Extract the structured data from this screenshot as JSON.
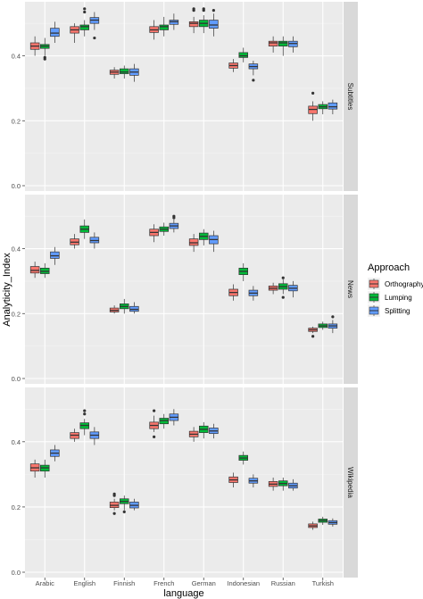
{
  "chart_data": {
    "type": "box",
    "xlabel": "language",
    "ylabel": "Analyticity_Index",
    "categories": [
      "Arabic",
      "English",
      "Finnish",
      "French",
      "German",
      "Indonesian",
      "Russian",
      "Turkish"
    ],
    "ylim": [
      0.0,
      0.55
    ],
    "yticks": [
      "0.0",
      "0.2",
      "0.4"
    ],
    "legend": {
      "title": "Approach",
      "position": "right",
      "entries": [
        {
          "name": "Orthography",
          "color": "#F8766D"
        },
        {
          "name": "Lumping",
          "color": "#00BA38"
        },
        {
          "name": "Splitting",
          "color": "#619CFF"
        }
      ]
    },
    "panels": [
      {
        "label": "Subtitles",
        "series": [
          {
            "name": "Orthography",
            "boxes": [
              {
                "min": 0.4,
                "q1": 0.42,
                "median": 0.43,
                "q3": 0.44,
                "max": 0.46,
                "outliers": []
              },
              {
                "min": 0.44,
                "q1": 0.47,
                "median": 0.48,
                "q3": 0.49,
                "max": 0.5,
                "outliers": []
              },
              {
                "min": 0.33,
                "q1": 0.343,
                "median": 0.35,
                "q3": 0.356,
                "max": 0.365,
                "outliers": []
              },
              {
                "min": 0.45,
                "q1": 0.472,
                "median": 0.48,
                "q3": 0.49,
                "max": 0.51,
                "outliers": []
              },
              {
                "min": 0.47,
                "q1": 0.49,
                "median": 0.5,
                "q3": 0.505,
                "max": 0.52,
                "outliers": [
                  0.54,
                  0.545
                ]
              },
              {
                "min": 0.35,
                "q1": 0.362,
                "median": 0.37,
                "q3": 0.378,
                "max": 0.39,
                "outliers": []
              },
              {
                "min": 0.41,
                "q1": 0.43,
                "median": 0.44,
                "q3": 0.445,
                "max": 0.46,
                "outliers": []
              },
              {
                "min": 0.2,
                "q1": 0.222,
                "median": 0.235,
                "q3": 0.245,
                "max": 0.26,
                "outliers": [
                  0.285
                ]
              }
            ]
          },
          {
            "name": "Lumping",
            "boxes": [
              {
                "min": 0.4,
                "q1": 0.423,
                "median": 0.43,
                "q3": 0.435,
                "max": 0.455,
                "outliers": [
                  0.39,
                  0.395
                ]
              },
              {
                "min": 0.46,
                "q1": 0.48,
                "median": 0.49,
                "q3": 0.495,
                "max": 0.51,
                "outliers": [
                  0.535,
                  0.545
                ]
              },
              {
                "min": 0.33,
                "q1": 0.345,
                "median": 0.35,
                "q3": 0.36,
                "max": 0.37,
                "outliers": []
              },
              {
                "min": 0.46,
                "q1": 0.48,
                "median": 0.49,
                "q3": 0.495,
                "max": 0.52,
                "outliers": []
              },
              {
                "min": 0.47,
                "q1": 0.49,
                "median": 0.5,
                "q3": 0.51,
                "max": 0.525,
                "outliers": [
                  0.54,
                  0.545
                ]
              },
              {
                "min": 0.38,
                "q1": 0.395,
                "median": 0.4,
                "q3": 0.41,
                "max": 0.425,
                "outliers": []
              },
              {
                "min": 0.4,
                "q1": 0.43,
                "median": 0.44,
                "q3": 0.445,
                "max": 0.46,
                "outliers": []
              },
              {
                "min": 0.22,
                "q1": 0.237,
                "median": 0.243,
                "q3": 0.25,
                "max": 0.26,
                "outliers": []
              }
            ]
          },
          {
            "name": "Splitting",
            "boxes": [
              {
                "min": 0.44,
                "q1": 0.46,
                "median": 0.47,
                "q3": 0.485,
                "max": 0.505,
                "outliers": []
              },
              {
                "min": 0.48,
                "q1": 0.5,
                "median": 0.51,
                "q3": 0.518,
                "max": 0.535,
                "outliers": [
                  0.455
                ]
              },
              {
                "min": 0.32,
                "q1": 0.34,
                "median": 0.35,
                "q3": 0.36,
                "max": 0.375,
                "outliers": []
              },
              {
                "min": 0.48,
                "q1": 0.497,
                "median": 0.505,
                "q3": 0.51,
                "max": 0.53,
                "outliers": []
              },
              {
                "min": 0.46,
                "q1": 0.485,
                "median": 0.495,
                "q3": 0.51,
                "max": 0.53,
                "outliers": [
                  0.54
                ]
              },
              {
                "min": 0.34,
                "q1": 0.36,
                "median": 0.367,
                "q3": 0.375,
                "max": 0.385,
                "outliers": [
                  0.325
                ]
              },
              {
                "min": 0.41,
                "q1": 0.428,
                "median": 0.438,
                "q3": 0.445,
                "max": 0.46,
                "outliers": []
              },
              {
                "min": 0.22,
                "q1": 0.236,
                "median": 0.243,
                "q3": 0.255,
                "max": 0.265,
                "outliers": []
              }
            ]
          }
        ]
      },
      {
        "label": "News",
        "series": [
          {
            "name": "Orthography",
            "boxes": [
              {
                "min": 0.31,
                "q1": 0.325,
                "median": 0.333,
                "q3": 0.345,
                "max": 0.36,
                "outliers": []
              },
              {
                "min": 0.4,
                "q1": 0.412,
                "median": 0.42,
                "q3": 0.43,
                "max": 0.445,
                "outliers": []
              },
              {
                "min": 0.2,
                "q1": 0.205,
                "median": 0.21,
                "q3": 0.217,
                "max": 0.225,
                "outliers": []
              },
              {
                "min": 0.42,
                "q1": 0.44,
                "median": 0.45,
                "q3": 0.46,
                "max": 0.475,
                "outliers": []
              },
              {
                "min": 0.39,
                "q1": 0.41,
                "median": 0.418,
                "q3": 0.43,
                "max": 0.445,
                "outliers": []
              },
              {
                "min": 0.24,
                "q1": 0.255,
                "median": 0.265,
                "q3": 0.275,
                "max": 0.29,
                "outliers": []
              },
              {
                "min": 0.26,
                "q1": 0.272,
                "median": 0.278,
                "q3": 0.285,
                "max": 0.295,
                "outliers": []
              },
              {
                "min": 0.14,
                "q1": 0.145,
                "median": 0.15,
                "q3": 0.155,
                "max": 0.16,
                "outliers": [
                  0.13
                ]
              }
            ]
          },
          {
            "name": "Lumping",
            "boxes": [
              {
                "min": 0.31,
                "q1": 0.323,
                "median": 0.33,
                "q3": 0.34,
                "max": 0.355,
                "outliers": []
              },
              {
                "min": 0.43,
                "q1": 0.45,
                "median": 0.46,
                "q3": 0.47,
                "max": 0.49,
                "outliers": []
              },
              {
                "min": 0.2,
                "q1": 0.215,
                "median": 0.222,
                "q3": 0.23,
                "max": 0.245,
                "outliers": []
              },
              {
                "min": 0.44,
                "q1": 0.453,
                "median": 0.46,
                "q3": 0.467,
                "max": 0.48,
                "outliers": []
              },
              {
                "min": 0.41,
                "q1": 0.428,
                "median": 0.438,
                "q3": 0.448,
                "max": 0.46,
                "outliers": []
              },
              {
                "min": 0.3,
                "q1": 0.32,
                "median": 0.33,
                "q3": 0.34,
                "max": 0.355,
                "outliers": []
              },
              {
                "min": 0.26,
                "q1": 0.275,
                "median": 0.283,
                "q3": 0.292,
                "max": 0.305,
                "outliers": [
                  0.25,
                  0.31
                ]
              },
              {
                "min": 0.15,
                "q1": 0.157,
                "median": 0.162,
                "q3": 0.168,
                "max": 0.175,
                "outliers": []
              }
            ]
          },
          {
            "name": "Splitting",
            "boxes": [
              {
                "min": 0.35,
                "q1": 0.37,
                "median": 0.378,
                "q3": 0.39,
                "max": 0.405,
                "outliers": []
              },
              {
                "min": 0.4,
                "q1": 0.418,
                "median": 0.425,
                "q3": 0.435,
                "max": 0.45,
                "outliers": []
              },
              {
                "min": 0.2,
                "q1": 0.207,
                "median": 0.213,
                "q3": 0.222,
                "max": 0.235,
                "outliers": []
              },
              {
                "min": 0.45,
                "q1": 0.462,
                "median": 0.47,
                "q3": 0.478,
                "max": 0.49,
                "outliers": [
                  0.495,
                  0.5
                ]
              },
              {
                "min": 0.39,
                "q1": 0.415,
                "median": 0.428,
                "q3": 0.44,
                "max": 0.455,
                "outliers": []
              },
              {
                "min": 0.24,
                "q1": 0.255,
                "median": 0.263,
                "q3": 0.272,
                "max": 0.285,
                "outliers": []
              },
              {
                "min": 0.25,
                "q1": 0.27,
                "median": 0.278,
                "q3": 0.287,
                "max": 0.3,
                "outliers": []
              },
              {
                "min": 0.14,
                "q1": 0.155,
                "median": 0.162,
                "q3": 0.168,
                "max": 0.18,
                "outliers": [
                  0.19
                ]
              }
            ]
          }
        ]
      },
      {
        "label": "Wikipedia",
        "series": [
          {
            "name": "Orthography",
            "boxes": [
              {
                "min": 0.29,
                "q1": 0.31,
                "median": 0.32,
                "q3": 0.332,
                "max": 0.345,
                "outliers": []
              },
              {
                "min": 0.4,
                "q1": 0.41,
                "median": 0.42,
                "q3": 0.428,
                "max": 0.44,
                "outliers": []
              },
              {
                "min": 0.19,
                "q1": 0.198,
                "median": 0.205,
                "q3": 0.215,
                "max": 0.225,
                "outliers": [
                  0.235,
                  0.24,
                  0.18
                ]
              },
              {
                "min": 0.43,
                "q1": 0.44,
                "median": 0.45,
                "q3": 0.46,
                "max": 0.48,
                "outliers": [
                  0.415,
                  0.495
                ]
              },
              {
                "min": 0.4,
                "q1": 0.415,
                "median": 0.423,
                "q3": 0.432,
                "max": 0.445,
                "outliers": []
              },
              {
                "min": 0.26,
                "q1": 0.275,
                "median": 0.283,
                "q3": 0.292,
                "max": 0.305,
                "outliers": []
              },
              {
                "min": 0.25,
                "q1": 0.263,
                "median": 0.27,
                "q3": 0.278,
                "max": 0.29,
                "outliers": []
              },
              {
                "min": 0.13,
                "q1": 0.137,
                "median": 0.142,
                "q3": 0.148,
                "max": 0.155,
                "outliers": []
              }
            ]
          },
          {
            "name": "Lumping",
            "boxes": [
              {
                "min": 0.29,
                "q1": 0.31,
                "median": 0.32,
                "q3": 0.328,
                "max": 0.345,
                "outliers": []
              },
              {
                "min": 0.42,
                "q1": 0.44,
                "median": 0.45,
                "q3": 0.458,
                "max": 0.47,
                "outliers": [
                  0.485,
                  0.495
                ]
              },
              {
                "min": 0.19,
                "q1": 0.21,
                "median": 0.217,
                "q3": 0.225,
                "max": 0.235,
                "outliers": [
                  0.185
                ]
              },
              {
                "min": 0.44,
                "q1": 0.455,
                "median": 0.465,
                "q3": 0.472,
                "max": 0.485,
                "outliers": []
              },
              {
                "min": 0.41,
                "q1": 0.428,
                "median": 0.438,
                "q3": 0.448,
                "max": 0.46,
                "outliers": []
              },
              {
                "min": 0.33,
                "q1": 0.343,
                "median": 0.35,
                "q3": 0.358,
                "max": 0.37,
                "outliers": []
              },
              {
                "min": 0.25,
                "q1": 0.265,
                "median": 0.272,
                "q3": 0.28,
                "max": 0.29,
                "outliers": []
              },
              {
                "min": 0.145,
                "q1": 0.153,
                "median": 0.158,
                "q3": 0.163,
                "max": 0.17,
                "outliers": []
              }
            ]
          },
          {
            "name": "Splitting",
            "boxes": [
              {
                "min": 0.34,
                "q1": 0.355,
                "median": 0.365,
                "q3": 0.375,
                "max": 0.39,
                "outliers": []
              },
              {
                "min": 0.39,
                "q1": 0.41,
                "median": 0.42,
                "q3": 0.43,
                "max": 0.445,
                "outliers": []
              },
              {
                "min": 0.19,
                "q1": 0.197,
                "median": 0.205,
                "q3": 0.215,
                "max": 0.225,
                "outliers": []
              },
              {
                "min": 0.45,
                "q1": 0.465,
                "median": 0.475,
                "q3": 0.485,
                "max": 0.5,
                "outliers": []
              },
              {
                "min": 0.41,
                "q1": 0.425,
                "median": 0.433,
                "q3": 0.442,
                "max": 0.455,
                "outliers": []
              },
              {
                "min": 0.26,
                "q1": 0.273,
                "median": 0.28,
                "q3": 0.288,
                "max": 0.3,
                "outliers": []
              },
              {
                "min": 0.25,
                "q1": 0.258,
                "median": 0.265,
                "q3": 0.273,
                "max": 0.285,
                "outliers": []
              },
              {
                "min": 0.14,
                "q1": 0.147,
                "median": 0.152,
                "q3": 0.158,
                "max": 0.165,
                "outliers": []
              }
            ]
          }
        ]
      }
    ]
  }
}
